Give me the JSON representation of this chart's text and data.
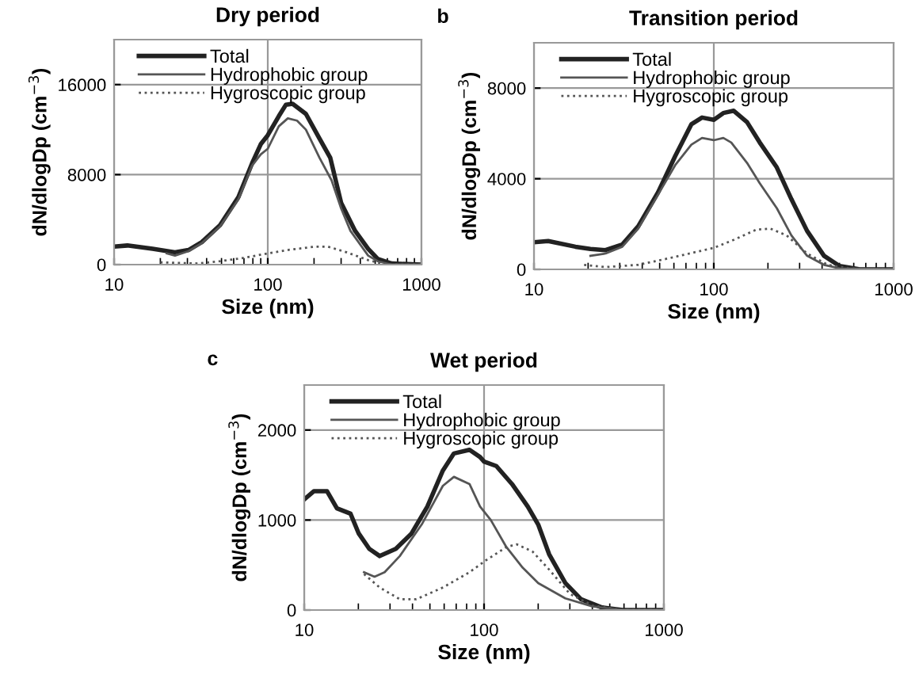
{
  "chart_data": [
    {
      "type": "line",
      "title": "Dry period",
      "xlabel": "Size (nm)",
      "ylabel": "dN/dlogDp (cm$^{−3}$)",
      "log": "x",
      "xlim": [
        10,
        1000
      ],
      "xticks": [
        10,
        100,
        1000
      ],
      "ylim": [
        0,
        20000
      ],
      "yticks": [
        0,
        8000,
        16000
      ],
      "grid": true,
      "legend": "top left",
      "marker": "none",
      "series": [
        {
          "name": "Total",
          "color": "#222222",
          "line_style": "solid",
          "x": [
            10,
            12.2,
            17.8,
            24.9,
            30.5,
            37.2,
            48.9,
            64.4,
            79,
            90,
            100,
            118,
            131,
            145,
            177,
            217,
            255,
            300,
            370,
            450,
            520,
            640,
            1000
          ],
          "values": [
            1600,
            1700,
            1400,
            1100,
            1300,
            2000,
            3500,
            6000,
            9000,
            10700,
            11500,
            13200,
            14200,
            14300,
            13400,
            11200,
            9500,
            5500,
            3000,
            1400,
            500,
            100,
            0
          ]
        },
        {
          "name": "Hydrophobic group",
          "color": "#555555",
          "line_style": "solid",
          "x": [
            22,
            24.9,
            30.5,
            37.2,
            48.9,
            64.4,
            79,
            90,
            100,
            118,
            135,
            155,
            177,
            217,
            260,
            300,
            345,
            450,
            520,
            640,
            1000
          ],
          "values": [
            1000,
            800,
            1200,
            1900,
            3400,
            5800,
            8800,
            9800,
            10300,
            12300,
            13000,
            12800,
            12000,
            9500,
            7500,
            5000,
            3000,
            800,
            300,
            0,
            0
          ]
        },
        {
          "name": "Hygroscopic group",
          "color": "#555555",
          "line_style": "dotted",
          "x": [
            20,
            35,
            49,
            70,
            100,
            135,
            203,
            246,
            325,
            450,
            590,
            1000
          ],
          "values": [
            200,
            100,
            300,
            600,
            1000,
            1300,
            1600,
            1600,
            1100,
            400,
            0,
            0
          ]
        }
      ]
    },
    {
      "type": "line",
      "title": "Transition period",
      "xlabel": "Size (nm)",
      "ylabel": "dN/dlogDp (cm$^{−3}$)",
      "annotations": [
        "b"
      ],
      "log": "x",
      "xlim": [
        10,
        1000
      ],
      "xticks": [
        10,
        100,
        1000
      ],
      "ylim": [
        0,
        10000
      ],
      "yticks": [
        0,
        4000,
        8000
      ],
      "grid": true,
      "legend": "top left",
      "marker": "none",
      "series": [
        {
          "name": "Total",
          "color": "#222222",
          "line_style": "solid",
          "x": [
            10,
            12,
            17,
            20.6,
            25,
            31,
            38,
            49,
            61,
            75,
            86,
            100,
            113,
            129,
            153,
            180,
            224,
            270,
            330,
            410,
            500,
            650,
            1000
          ],
          "values": [
            1200,
            1250,
            1000,
            900,
            850,
            1100,
            1900,
            3400,
            5000,
            6400,
            6700,
            6600,
            6900,
            7000,
            6500,
            5600,
            4500,
            3100,
            1700,
            600,
            150,
            0,
            0
          ]
        },
        {
          "name": "Hydrophobic group",
          "color": "#555555",
          "line_style": "solid",
          "x": [
            20.6,
            25,
            31,
            38,
            49,
            61,
            75,
            86,
            100,
            113,
            125,
            153,
            180,
            224,
            270,
            330,
            410,
            500,
            1000
          ],
          "values": [
            600,
            700,
            1000,
            1800,
            3300,
            4600,
            5500,
            5800,
            5700,
            5800,
            5600,
            4700,
            3800,
            2700,
            1500,
            600,
            200,
            50,
            0
          ]
        },
        {
          "name": "Hygroscopic group",
          "color": "#555555",
          "line_style": "dotted",
          "x": [
            19,
            25,
            38,
            57,
            100,
            129,
            172,
            206,
            254,
            330,
            430,
            560,
            1000
          ],
          "values": [
            200,
            100,
            200,
            500,
            950,
            1300,
            1750,
            1800,
            1500,
            700,
            200,
            50,
            0
          ]
        }
      ]
    },
    {
      "type": "line",
      "title": "Wet period",
      "xlabel": "Size (nm)",
      "ylabel": "dN/dlogDp (cm$^{−3}$)",
      "annotations": [
        "c"
      ],
      "log": "x",
      "xlim": [
        10,
        1000
      ],
      "xticks": [
        10,
        100,
        1000
      ],
      "ylim": [
        0,
        2500
      ],
      "yticks": [
        0,
        1000,
        2000
      ],
      "grid": true,
      "legend": "top left",
      "marker": "none",
      "series": [
        {
          "name": "Total",
          "color": "#222222",
          "line_style": "solid",
          "x": [
            10,
            11.3,
            13.4,
            15.2,
            18.1,
            20.1,
            23,
            26.3,
            32.3,
            39.5,
            48.4,
            59,
            68,
            83,
            95,
            100,
            117,
            143,
            175,
            200,
            230,
            283,
            346,
            450,
            590,
            1000
          ],
          "values": [
            1230,
            1320,
            1320,
            1130,
            1070,
            850,
            680,
            600,
            680,
            850,
            1150,
            1550,
            1740,
            1780,
            1700,
            1650,
            1600,
            1400,
            1150,
            950,
            620,
            300,
            120,
            30,
            0,
            0
          ]
        },
        {
          "name": "Hydrophobic group",
          "color": "#555555",
          "line_style": "solid",
          "x": [
            21.5,
            24.6,
            28,
            34,
            45,
            59,
            68,
            83,
            95,
            109,
            133,
            164,
            200,
            283,
            400,
            590,
            1000
          ],
          "values": [
            420,
            370,
            420,
            600,
            950,
            1380,
            1480,
            1400,
            1150,
            1000,
            700,
            470,
            300,
            130,
            40,
            0,
            0
          ]
        },
        {
          "name": "Hygroscopic group",
          "color": "#555555",
          "line_style": "dotted",
          "x": [
            21.5,
            26.3,
            34,
            42,
            59,
            83,
            102,
            133,
            152,
            186,
            230,
            300,
            400,
            590,
            1000
          ],
          "values": [
            400,
            250,
            120,
            120,
            250,
            420,
            550,
            700,
            730,
            650,
            450,
            180,
            50,
            0,
            0
          ]
        }
      ]
    }
  ]
}
